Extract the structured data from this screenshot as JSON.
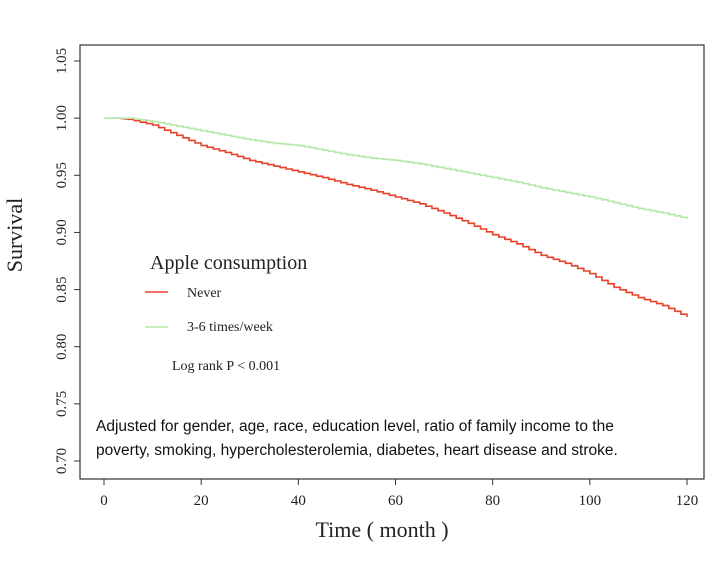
{
  "chart_data": {
    "type": "line",
    "step": true,
    "title": "",
    "xlabel": "Time ( month )",
    "ylabel": "Survival",
    "xlim": [
      0,
      120
    ],
    "ylim": [
      0.7,
      1.05
    ],
    "xticks": [
      "0",
      "20",
      "40",
      "60",
      "80",
      "100",
      "120"
    ],
    "yticks": [
      "0.70",
      "0.75",
      "0.80",
      "0.85",
      "0.90",
      "0.95",
      "1.00",
      "1.05"
    ],
    "grid": false,
    "legend": {
      "title": "Apple consumption",
      "placement": "middle-left"
    },
    "series": [
      {
        "name": "Never",
        "color": "#e8412a",
        "x": [
          3,
          5,
          10,
          15,
          20,
          25,
          30,
          35,
          40,
          45,
          50,
          55,
          60,
          65,
          70,
          75,
          80,
          85,
          90,
          95,
          100,
          105,
          110,
          115,
          120
        ],
        "y": [
          1.0,
          0.999,
          0.994,
          0.985,
          0.976,
          0.97,
          0.963,
          0.958,
          0.953,
          0.948,
          0.942,
          0.937,
          0.931,
          0.925,
          0.917,
          0.908,
          0.898,
          0.89,
          0.88,
          0.873,
          0.864,
          0.852,
          0.843,
          0.836,
          0.826
        ]
      },
      {
        "name": "3-6 times/week",
        "color": "#b5e8a8",
        "x": [
          0,
          5,
          10,
          15,
          20,
          25,
          30,
          35,
          40,
          45,
          50,
          55,
          60,
          65,
          70,
          75,
          80,
          85,
          90,
          95,
          100,
          105,
          110,
          115,
          120
        ],
        "y": [
          1.0,
          1.0,
          0.997,
          0.993,
          0.989,
          0.985,
          0.981,
          0.978,
          0.976,
          0.972,
          0.968,
          0.965,
          0.963,
          0.96,
          0.956,
          0.952,
          0.948,
          0.944,
          0.939,
          0.935,
          0.931,
          0.926,
          0.921,
          0.917,
          0.912
        ]
      }
    ],
    "annotations": {
      "log_rank": "Log rank P < 0.001",
      "adjusted_line1": "Adjusted for gender, age, race, education level, ratio of family income to the",
      "adjusted_line2": "poverty, smoking, hypercholesterolemia, diabetes, heart disease and stroke."
    }
  }
}
